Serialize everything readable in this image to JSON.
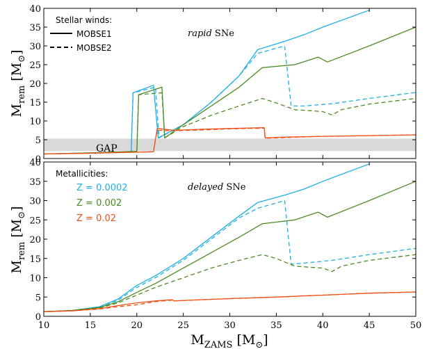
{
  "chart_data": [
    {
      "panel": "top",
      "type": "line",
      "annotation": [
        "rapid",
        " SNe"
      ],
      "legend": {
        "title": "Stellar winds:",
        "entries": [
          {
            "label": "MOBSE1",
            "style": "solid"
          },
          {
            "label": "MOBSE2",
            "style": "dashed"
          }
        ],
        "placement": "top-left"
      },
      "gap_band": {
        "label": "GAP",
        "ylim": [
          2,
          5.3
        ],
        "color": "#d9d9d9"
      },
      "xlim": [
        10,
        50
      ],
      "ylim": [
        0,
        40
      ],
      "xticks": [
        10,
        15,
        20,
        25,
        30,
        35,
        40,
        45,
        50
      ],
      "yticks": [
        0,
        5,
        10,
        15,
        20,
        25,
        30,
        35,
        40
      ],
      "ylabel": [
        "M",
        "rem",
        " [M",
        "⊙",
        "]"
      ],
      "series": [
        {
          "color": "#1eaee8",
          "style": "solid",
          "x": [
            10,
            15,
            19.4,
            19.5,
            19.6,
            21.8,
            22.3,
            25,
            28,
            31,
            33,
            36,
            38,
            40,
            45
          ],
          "y": [
            1.2,
            1.5,
            1.8,
            10,
            17.5,
            19.5,
            5.5,
            9,
            15,
            22,
            29,
            31.3,
            33,
            35,
            39.5
          ]
        },
        {
          "color": "#1eaee8",
          "style": "dashed",
          "x": [
            19.4,
            19.6,
            22,
            22.4,
            25,
            28,
            31,
            33,
            35.9,
            36.6,
            38,
            41,
            45,
            50
          ],
          "y": [
            1.8,
            17.5,
            19,
            5.5,
            9,
            15,
            22,
            28,
            30,
            14,
            14,
            14.6,
            16,
            17.6
          ]
        },
        {
          "color": "#4a8a23",
          "style": "solid",
          "x": [
            10,
            15,
            20,
            20.2,
            22.7,
            23,
            25,
            28,
            31,
            33.5,
            37,
            39.5,
            40.5,
            45,
            50
          ],
          "y": [
            1.2,
            1.5,
            1.9,
            17,
            19,
            5.5,
            9,
            14,
            19,
            24.2,
            25,
            27,
            25.7,
            30,
            35
          ]
        },
        {
          "color": "#4a8a23",
          "style": "dashed",
          "x": [
            20,
            20.2,
            22.7,
            23,
            25,
            28,
            31,
            33.5,
            35,
            37,
            40,
            41,
            42,
            45,
            50
          ],
          "y": [
            1.9,
            17,
            17.5,
            5.5,
            8.5,
            11.5,
            14,
            16,
            14.8,
            13,
            12.5,
            11.6,
            13,
            14.5,
            16
          ]
        },
        {
          "color": "#ee4f14",
          "style": "solid",
          "x": [
            10,
            15,
            21.8,
            22,
            22.2,
            24,
            27,
            30,
            33.7,
            33.8,
            36,
            40,
            45,
            50
          ],
          "y": [
            1.2,
            1.4,
            1.8,
            5,
            8,
            7.5,
            7.8,
            8,
            8.2,
            5.5,
            5.7,
            5.9,
            6.1,
            6.3
          ]
        },
        {
          "color": "#ee4f14",
          "style": "dashed",
          "x": [
            10,
            15,
            21.8,
            22,
            22.2,
            24,
            27,
            30,
            33.7,
            33.8,
            36,
            40,
            45,
            50
          ],
          "y": [
            1.2,
            1.4,
            1.8,
            5,
            7.5,
            7.4,
            7.6,
            7.9,
            8.1,
            5.4,
            5.6,
            5.9,
            6.1,
            6.3
          ]
        }
      ]
    },
    {
      "panel": "bottom",
      "type": "line",
      "annotation": [
        "delayed",
        " SNe"
      ],
      "legend": {
        "title": "Metallicities:",
        "entries": [
          {
            "label": "Z = 0.0002",
            "color": "#1eaee8"
          },
          {
            "label": "Z = 0.002",
            "color": "#4a8a23"
          },
          {
            "label": "Z = 0.02",
            "color": "#ee4f14"
          }
        ],
        "placement": "top-left"
      },
      "xlim": [
        10,
        50
      ],
      "ylim": [
        0,
        40
      ],
      "xticks": [
        10,
        15,
        20,
        25,
        30,
        35,
        40,
        45,
        50
      ],
      "yticks": [
        0,
        5,
        10,
        15,
        20,
        25,
        30,
        35,
        40
      ],
      "xlabel": [
        "M",
        "ZAMS",
        " [M",
        "⊙",
        "]"
      ],
      "ylabel": [
        "M",
        "rem",
        " [M",
        "⊙",
        "]"
      ],
      "series": [
        {
          "color": "#1eaee8",
          "style": "solid",
          "x": [
            10,
            13,
            16,
            18,
            20,
            22,
            25,
            28,
            31,
            33,
            36,
            38,
            40,
            45
          ],
          "y": [
            1.2,
            1.5,
            2.5,
            4.5,
            8,
            10.5,
            15,
            20.5,
            26,
            29.5,
            31.5,
            33,
            35,
            39.5
          ]
        },
        {
          "color": "#1eaee8",
          "style": "dashed",
          "x": [
            10,
            13,
            16,
            18,
            20,
            22,
            25,
            28,
            31,
            33,
            35.9,
            36.6,
            38,
            41,
            45,
            50
          ],
          "y": [
            1.2,
            1.5,
            2.5,
            4.2,
            7.5,
            10,
            14.5,
            20,
            25.5,
            28,
            30,
            13.5,
            13.8,
            14.5,
            16,
            17.6
          ]
        },
        {
          "color": "#4a8a23",
          "style": "solid",
          "x": [
            10,
            13,
            16,
            18,
            20,
            22,
            25,
            28,
            31,
            33.5,
            37,
            39.5,
            40.5,
            45,
            50
          ],
          "y": [
            1.2,
            1.5,
            2.3,
            3.8,
            6.2,
            8.5,
            12.5,
            16.5,
            20.5,
            24,
            25,
            27,
            25.7,
            30,
            35
          ]
        },
        {
          "color": "#4a8a23",
          "style": "dashed",
          "x": [
            10,
            13,
            16,
            18,
            20,
            22,
            25,
            28,
            31,
            33.5,
            35,
            37,
            40,
            41,
            42,
            45,
            50
          ],
          "y": [
            1.2,
            1.5,
            2.2,
            3.5,
            5.5,
            7.5,
            10,
            12.5,
            14.5,
            16,
            15,
            13,
            12.5,
            11.6,
            13,
            14.5,
            16
          ]
        },
        {
          "color": "#ee4f14",
          "style": "solid",
          "x": [
            10,
            13,
            16,
            18,
            20,
            22,
            23.8,
            24,
            27,
            30,
            35,
            40,
            45,
            50
          ],
          "y": [
            1.2,
            1.4,
            2,
            2.8,
            3.5,
            4,
            4.3,
            4,
            4.3,
            4.6,
            5,
            5.5,
            6,
            6.3
          ]
        },
        {
          "color": "#ee4f14",
          "style": "dashed",
          "x": [
            10,
            13,
            16,
            18,
            20,
            22,
            23.8,
            24,
            27,
            30,
            35,
            40,
            45,
            50
          ],
          "y": [
            1.2,
            1.4,
            1.9,
            2.5,
            3,
            3.8,
            4.2,
            4,
            4.3,
            4.6,
            5,
            5.5,
            6,
            6.3
          ]
        }
      ]
    }
  ]
}
